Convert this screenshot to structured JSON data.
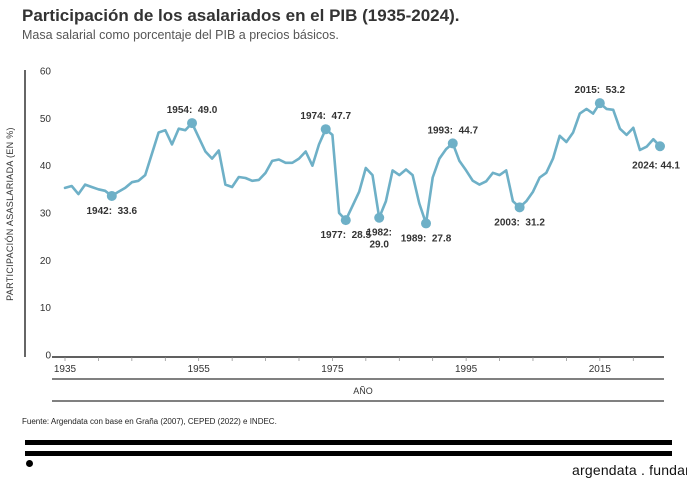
{
  "header": {
    "title": "Participación de los asalariados en el PIB (1935-2024).",
    "subtitle": "Masa salarial como porcentaje del PIB a precios básicos."
  },
  "footer": {
    "source": "Fuente: Argendata con base en Graña (2007), CEPED (2022) e INDEC.",
    "brand": "argendata . fundar"
  },
  "colors": {
    "line": "#6eb0c7",
    "text": "#333333",
    "axis": "#000000",
    "grid": "#dddddd"
  },
  "chart_data": {
    "type": "line",
    "xlabel": "AÑO",
    "ylabel": "PARTICIPACIÓN ASASLARIADA  (EN %)",
    "xlim": [
      1935,
      2024
    ],
    "ylim": [
      0,
      60
    ],
    "yticks": [
      0,
      10,
      20,
      30,
      40,
      50,
      60
    ],
    "xticks": [
      1935,
      1955,
      1975,
      1995,
      2015
    ],
    "grid": false,
    "series": [
      {
        "x": [
          1935,
          1936,
          1937,
          1938,
          1939,
          1940,
          1941,
          1942,
          1943,
          1944,
          1945,
          1946,
          1947,
          1948,
          1949,
          1950,
          1951,
          1952,
          1953,
          1954,
          1955,
          1956,
          1957,
          1958,
          1959,
          1960,
          1961,
          1962,
          1963,
          1964,
          1965,
          1966,
          1967,
          1968,
          1969,
          1970,
          1971,
          1972,
          1973,
          1974,
          1975,
          1976,
          1977,
          1978,
          1979,
          1980,
          1981,
          1982,
          1983,
          1984,
          1985,
          1986,
          1987,
          1988,
          1989,
          1990,
          1991,
          1992,
          1993,
          1994,
          1995,
          1996,
          1997,
          1998,
          1999,
          2000,
          2001,
          2002,
          2003,
          2004,
          2005,
          2006,
          2007,
          2008,
          2009,
          2010,
          2011,
          2012,
          2013,
          2014,
          2015,
          2016,
          2017,
          2018,
          2019,
          2020,
          2021,
          2022,
          2023,
          2024
        ],
        "values": [
          35.3,
          35.7,
          34,
          36,
          35.5,
          35,
          34.7,
          33.6,
          34.5,
          35.3,
          36.5,
          36.8,
          38,
          42.5,
          47,
          47.5,
          44.5,
          47.8,
          47.5,
          49.0,
          46,
          43,
          41.5,
          43.2,
          36,
          35.5,
          37.6,
          37.4,
          36.8,
          37,
          38.5,
          41,
          41.3,
          40.6,
          40.6,
          41.5,
          43,
          40,
          44.5,
          47.7,
          46.5,
          30,
          28.5,
          31.5,
          34.5,
          39.5,
          38,
          29.0,
          32.5,
          39,
          38,
          39.2,
          38,
          32,
          27.8,
          37.5,
          41.5,
          43.5,
          44.7,
          41,
          39,
          36.8,
          36,
          36.7,
          38.5,
          38,
          39,
          32.5,
          31.2,
          32.5,
          34.5,
          37.5,
          38.5,
          41.5,
          46.3,
          45,
          47,
          51,
          52,
          51,
          53.2,
          52,
          51.8,
          47.8,
          46.5,
          48,
          43.3,
          44,
          45.6,
          44.1
        ]
      }
    ],
    "annotations": [
      {
        "label": "1942:  33.6",
        "x": 1942,
        "y": 33.6,
        "pos": "below"
      },
      {
        "label": "1954:  49.0",
        "x": 1954,
        "y": 49.0,
        "pos": "above"
      },
      {
        "label": "1974:  47.7",
        "x": 1974,
        "y": 47.7,
        "pos": "above"
      },
      {
        "label": "1977:  28.5",
        "x": 1977,
        "y": 28.5,
        "pos": "below"
      },
      {
        "label": "1982:\n29.0",
        "x": 1982,
        "y": 29.0,
        "pos": "below"
      },
      {
        "label": "1989:  27.8",
        "x": 1989,
        "y": 27.8,
        "pos": "below"
      },
      {
        "label": "1993:  44.7",
        "x": 1993,
        "y": 44.7,
        "pos": "above"
      },
      {
        "label": "2003:  31.2",
        "x": 2003,
        "y": 31.2,
        "pos": "below"
      },
      {
        "label": "2015:  53.2",
        "x": 2015,
        "y": 53.2,
        "pos": "above"
      },
      {
        "label": "2024: 44.1",
        "x": 2024,
        "y": 44.1,
        "pos": "below-left"
      }
    ]
  }
}
